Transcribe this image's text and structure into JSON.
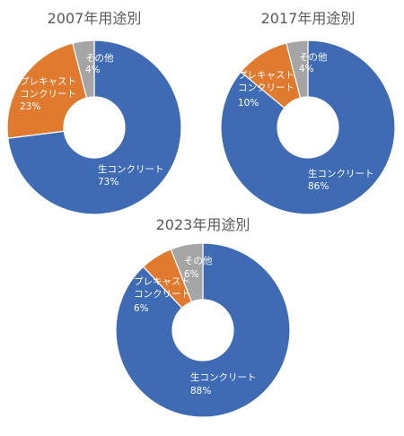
{
  "chart_data": [
    {
      "type": "pie",
      "title": "2007年用途別",
      "slices": [
        {
          "name": "生コンクリート",
          "value": 73,
          "label": "73%",
          "color": "#3f6bb5"
        },
        {
          "name": "プレキャスト\nコンクリート",
          "value": 23,
          "label": "23%",
          "color": "#e07a2f"
        },
        {
          "name": "その他",
          "value": 4,
          "label": "4%",
          "color": "#a5a5a5"
        }
      ]
    },
    {
      "type": "pie",
      "title": "2017年用途別",
      "slices": [
        {
          "name": "生コンクリート",
          "value": 86,
          "label": "86%",
          "color": "#3f6bb5"
        },
        {
          "name": "プレキャスト\nコンクリート",
          "value": 10,
          "label": "10%",
          "color": "#e07a2f"
        },
        {
          "name": "その他",
          "value": 4,
          "label": "4%",
          "color": "#a5a5a5"
        }
      ]
    },
    {
      "type": "pie",
      "title": "2023年用途別",
      "slices": [
        {
          "name": "生コンクリート",
          "value": 88,
          "label": "88%",
          "color": "#3f6bb5"
        },
        {
          "name": "プレキャスト\nコンクリート",
          "value": 6,
          "label": "6%",
          "color": "#e07a2f"
        },
        {
          "name": "その他",
          "value": 6,
          "label": "6%",
          "color": "#a5a5a5"
        }
      ]
    }
  ]
}
